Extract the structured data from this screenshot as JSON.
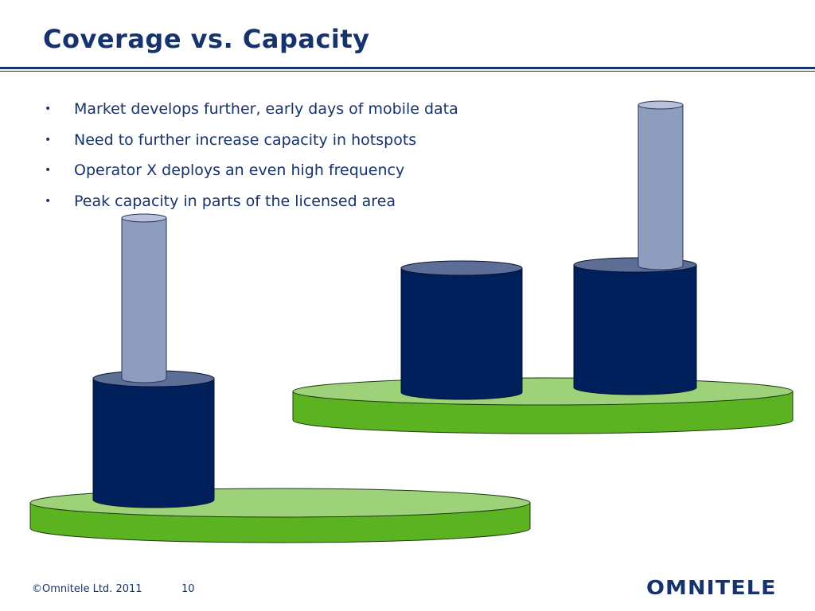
{
  "slide": {
    "title": "Coverage vs. Capacity",
    "bullets": [
      {
        "text": "Market develops further, early days of mobile data"
      },
      {
        "text": "Need to further increase capacity in hotspots"
      },
      {
        "text": "Operator X deploys an even high frequency"
      },
      {
        "text": "Peak capacity in parts of the licensed area"
      }
    ],
    "bullet_glyph": "•"
  },
  "footer": {
    "copyright": "©Omnitele Ltd. 2011",
    "page_number": "10",
    "logo_text": "omnitele"
  },
  "colors": {
    "title": "#17336e",
    "disc_top": "#9ed27a",
    "disc_side": "#5cb322",
    "cylinder_dark": "#00205b",
    "cylinder_dark_top": "#5d6e96",
    "cylinder_light": "#8e9dbd",
    "cylinder_light_top": "#b7c2da"
  }
}
